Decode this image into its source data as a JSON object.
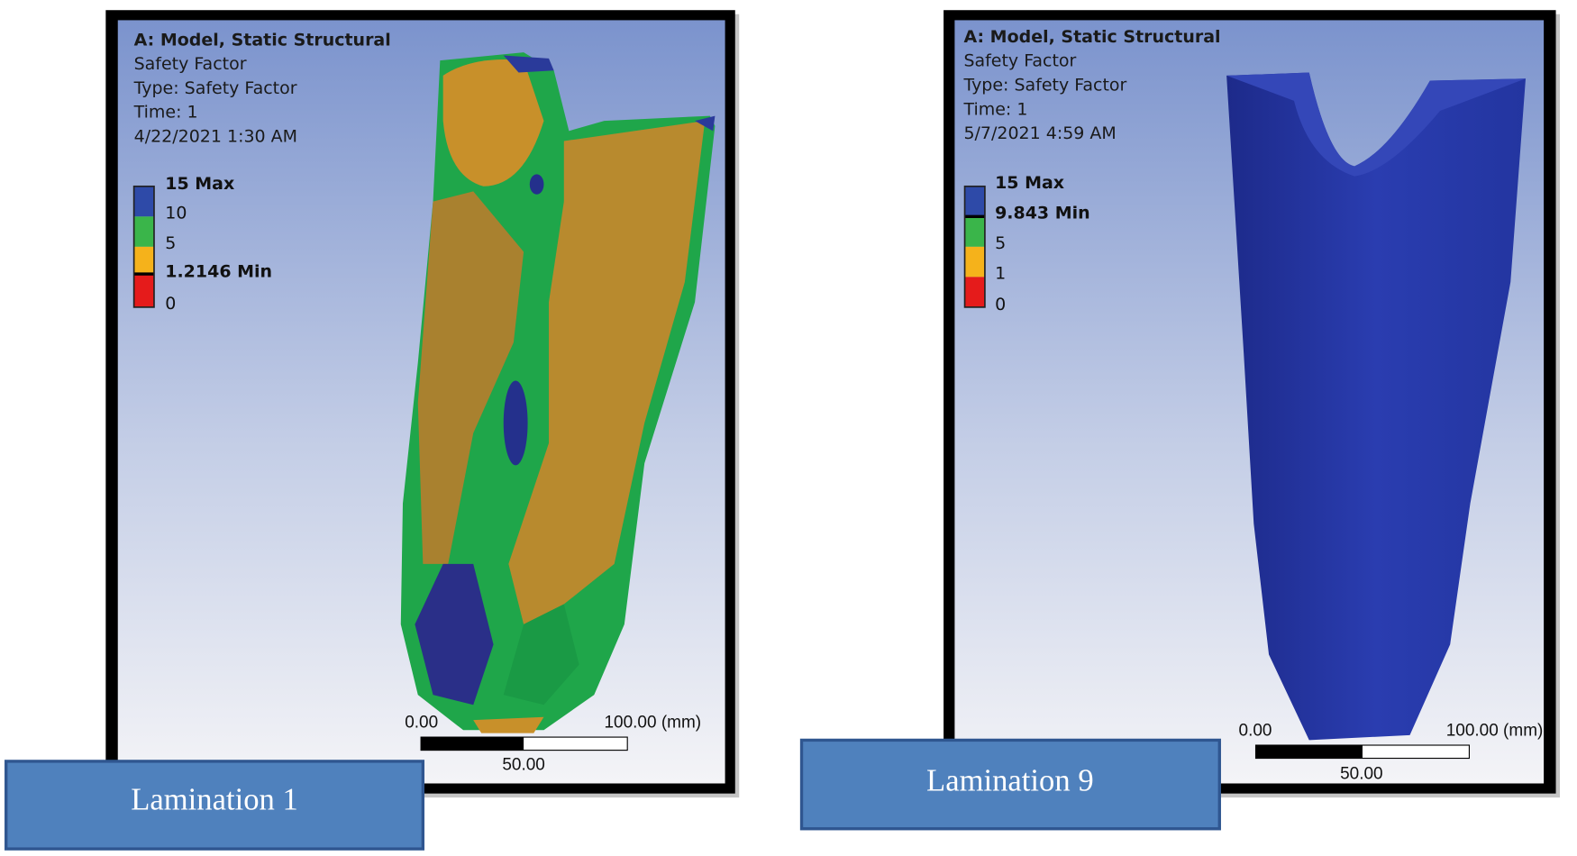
{
  "panels": [
    {
      "header": [
        "A: Model, Static Structural",
        "Safety Factor",
        "Type: Safety Factor",
        "Time: 1",
        "4/22/2021 1:30 AM"
      ],
      "legend": [
        "15 Max",
        "10",
        "5",
        "1.2146 Min",
        "0"
      ],
      "scale": {
        "start": "0.00",
        "end": "100.00 (mm)",
        "mid": "50.00"
      },
      "caption": "Lamination 1"
    },
    {
      "header": [
        "A: Model, Static Structural",
        "Safety Factor",
        "Type: Safety Factor",
        "Time: 1",
        "5/7/2021 4:59 AM"
      ],
      "legend": [
        "15 Max",
        "9.843 Min",
        "5",
        "1",
        "0"
      ],
      "scale": {
        "start": "0.00",
        "end": "100.00 (mm)",
        "mid": "50.00"
      },
      "caption": "Lamination 9"
    }
  ]
}
